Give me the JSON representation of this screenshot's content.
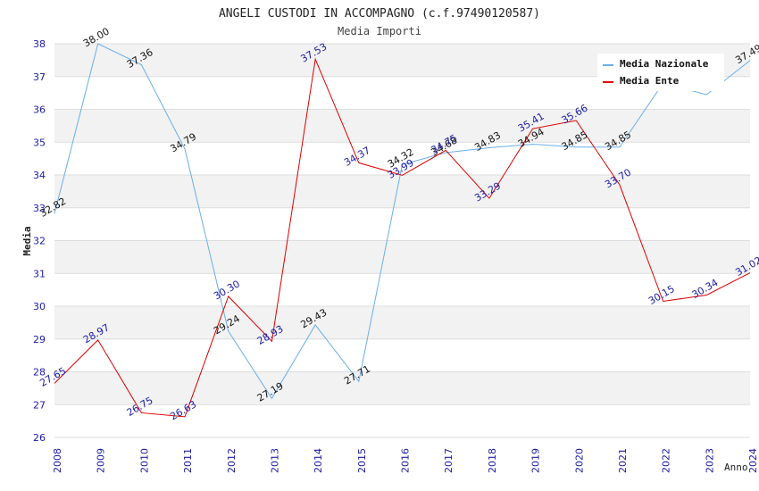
{
  "chart_data": {
    "type": "line",
    "title": "ANGELI CUSTODI IN ACCOMPAGNO (c.f.97490120587)",
    "subtitle": "Media Importi",
    "xlabel": "Anno",
    "ylabel": "Media",
    "ylim": [
      26,
      38
    ],
    "yticks": [
      "26",
      "27",
      "28",
      "29",
      "30",
      "31",
      "32",
      "33",
      "34",
      "35",
      "36",
      "37",
      "38"
    ],
    "categories": [
      "2008",
      "2009",
      "2010",
      "2011",
      "2012",
      "2013",
      "2014",
      "2015",
      "2016",
      "2017",
      "2018",
      "2019",
      "2020",
      "2021",
      "2022",
      "2023",
      "2024"
    ],
    "legend_position": "top-right",
    "series": [
      {
        "name": "Media Nazionale",
        "color": "#6aaee8",
        "label_color": "#111111",
        "values": [
          32.82,
          38.0,
          37.36,
          34.79,
          29.24,
          27.19,
          29.43,
          27.71,
          34.32,
          34.68,
          34.83,
          34.94,
          34.85,
          34.85,
          36.8,
          36.45,
          37.49
        ],
        "labels": [
          "32.82",
          "38.00",
          "37.36",
          "34.79",
          "29.24",
          "27.19",
          "29.43",
          "27.71",
          "34.32",
          "34.68",
          "34.83",
          "34.94",
          "34.85",
          "34.85",
          "",
          "",
          "37.49"
        ]
      },
      {
        "name": "Media Ente",
        "color": "#dd0000",
        "label_color": "#1a1aa6",
        "values": [
          27.65,
          28.97,
          26.75,
          26.63,
          30.3,
          28.93,
          37.53,
          34.37,
          33.99,
          34.75,
          33.29,
          35.41,
          35.66,
          33.7,
          30.15,
          30.34,
          31.02
        ],
        "labels": [
          "27.65",
          "28.97",
          "26.75",
          "26.63",
          "30.30",
          "28.93",
          "37.53",
          "34.37",
          "33.99",
          "34.75",
          "33.29",
          "35.41",
          "35.66",
          "33.70",
          "30.15",
          "30.34",
          "31.02"
        ]
      }
    ]
  }
}
